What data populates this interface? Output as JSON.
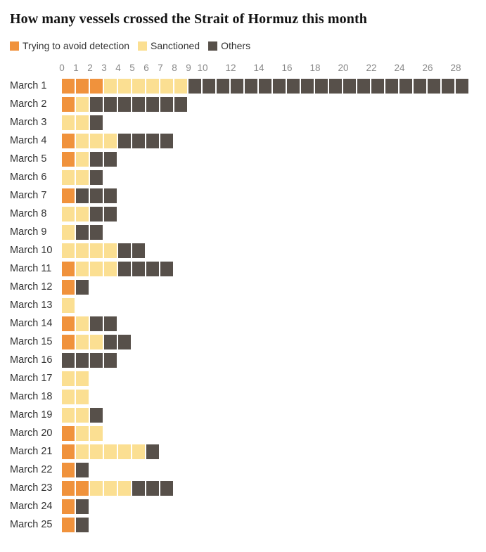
{
  "chart_data": {
    "type": "bar",
    "orientation": "horizontal",
    "stacked": true,
    "grid": false,
    "legend_position": "top",
    "title": "How many vessels crossed the Strait of Hormuz this month",
    "xlabel": "",
    "ylabel": "",
    "xlim": [
      0,
      29
    ],
    "x_ticks": [
      0,
      1,
      2,
      3,
      4,
      5,
      6,
      7,
      8,
      9,
      10,
      12,
      14,
      16,
      18,
      20,
      22,
      24,
      26,
      28
    ],
    "categories": [
      "March 1",
      "March 2",
      "March 3",
      "March 4",
      "March 5",
      "March 6",
      "March 7",
      "March 8",
      "March 9",
      "March 10",
      "March 11",
      "March 12",
      "March 13",
      "March 14",
      "March 15",
      "March 16",
      "March 17",
      "March 18",
      "March 19",
      "March 20",
      "March 21",
      "March 22",
      "March 23",
      "March 24",
      "March 25"
    ],
    "series": [
      {
        "name": "Trying to avoid detection",
        "color": "#F0923C",
        "values": [
          3,
          1,
          0,
          1,
          1,
          0,
          1,
          0,
          0,
          0,
          1,
          1,
          0,
          1,
          1,
          0,
          0,
          0,
          0,
          1,
          1,
          1,
          2,
          1,
          1
        ]
      },
      {
        "name": "Sanctioned",
        "color": "#FBDF92",
        "values": [
          6,
          1,
          2,
          3,
          1,
          2,
          0,
          2,
          1,
          4,
          3,
          0,
          1,
          1,
          2,
          0,
          2,
          2,
          2,
          2,
          5,
          0,
          3,
          0,
          0
        ]
      },
      {
        "name": "Others",
        "color": "#57504A",
        "values": [
          20,
          7,
          1,
          4,
          2,
          1,
          3,
          2,
          2,
          2,
          4,
          1,
          0,
          2,
          2,
          4,
          0,
          0,
          1,
          0,
          1,
          1,
          3,
          1,
          1
        ]
      }
    ],
    "totals": [
      29,
      9,
      3,
      8,
      4,
      3,
      4,
      4,
      3,
      6,
      8,
      2,
      1,
      4,
      5,
      4,
      2,
      2,
      3,
      3,
      7,
      2,
      8,
      2,
      2
    ],
    "colors": {
      "avoid_detection": "#F0923C",
      "sanctioned": "#FBDF92",
      "others": "#57504A",
      "axis_text": "#888888",
      "label_text": "#333333",
      "title_text": "#121212"
    }
  }
}
